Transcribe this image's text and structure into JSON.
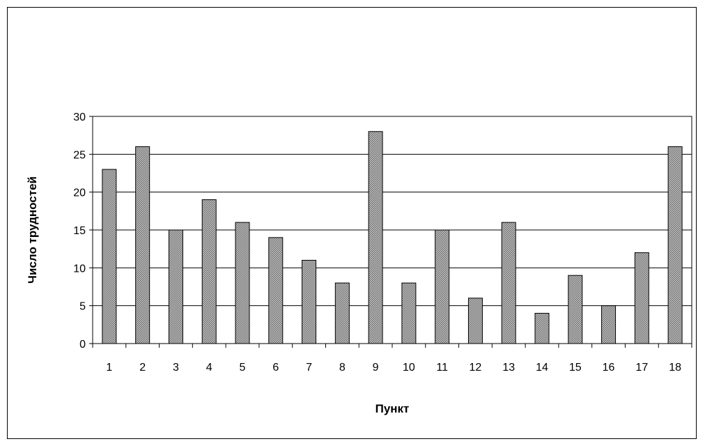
{
  "chart_data": {
    "type": "bar",
    "title": "",
    "xlabel": "Пункт",
    "ylabel": "Число трудностей",
    "categories": [
      "1",
      "2",
      "3",
      "4",
      "5",
      "6",
      "7",
      "8",
      "9",
      "10",
      "11",
      "12",
      "13",
      "14",
      "15",
      "16",
      "17",
      "18"
    ],
    "values": [
      23,
      26,
      15,
      19,
      16,
      14,
      11,
      8,
      28,
      8,
      15,
      6,
      16,
      4,
      9,
      5,
      12,
      26
    ],
    "ylim": [
      0,
      30
    ],
    "yticks": [
      "0",
      "5",
      "10",
      "15",
      "20",
      "25",
      "30"
    ],
    "grid": true,
    "legend": "none",
    "bar_fill": "#9a9a9a",
    "bar_stroke": "#000000"
  }
}
